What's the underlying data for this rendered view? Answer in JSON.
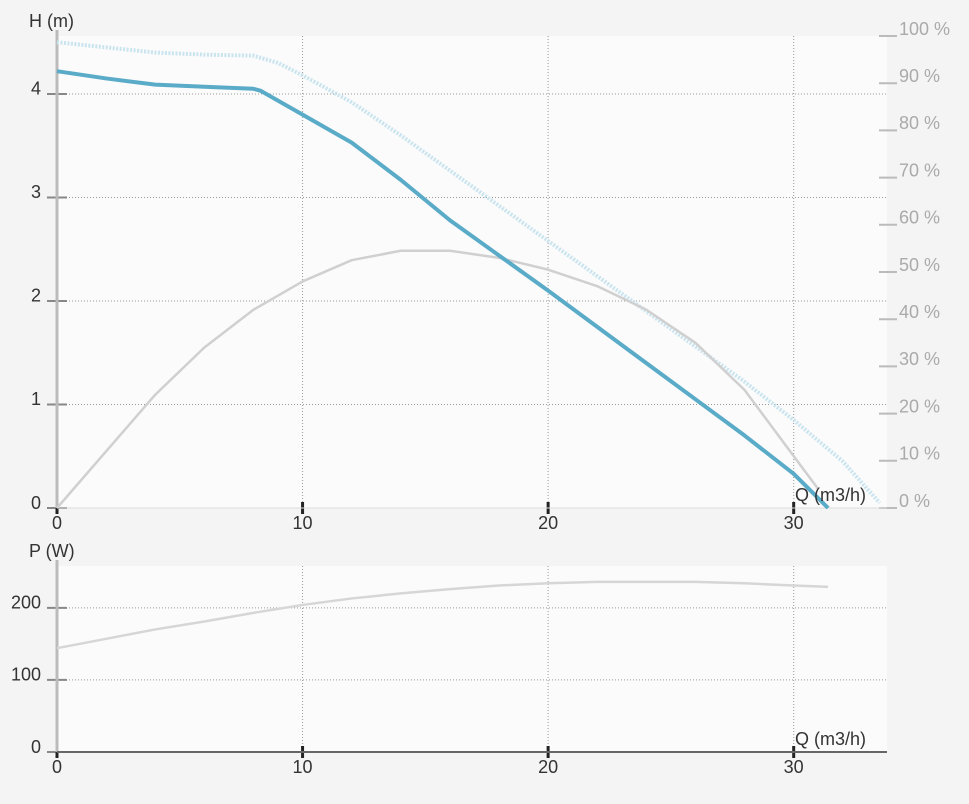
{
  "chart_data": [
    {
      "type": "line",
      "y_label": "H (m)",
      "x_label": "Q (m3/h)",
      "xlim": [
        0,
        33.8
      ],
      "xticks": [
        0,
        10,
        20,
        30
      ],
      "ylim": [
        0,
        4.56
      ],
      "yticks": [
        0,
        1,
        2,
        3,
        4
      ],
      "y2lim": [
        0,
        100
      ],
      "y2ticks": [
        {
          "value": 0,
          "label": "0 %"
        },
        {
          "value": 10,
          "label": "10 %"
        },
        {
          "value": 20,
          "label": "20 %"
        },
        {
          "value": 30,
          "label": "30 %"
        },
        {
          "value": 40,
          "label": "40 %"
        },
        {
          "value": 50,
          "label": "50 %"
        },
        {
          "value": 60,
          "label": "60 %"
        },
        {
          "value": 70,
          "label": "70 %"
        },
        {
          "value": 80,
          "label": "80 %"
        },
        {
          "value": 90,
          "label": "90 %"
        },
        {
          "value": 100,
          "label": "100 %"
        }
      ],
      "grid": true,
      "series": [
        {
          "color": "#c9e4ef",
          "style": "dotted",
          "x": [
            0,
            2,
            4,
            6,
            8,
            9,
            10,
            12,
            14,
            16,
            18,
            20,
            22,
            24,
            26,
            28,
            30,
            32,
            33.5
          ],
          "values": [
            4.5,
            4.45,
            4.4,
            4.38,
            4.37,
            4.3,
            4.18,
            3.92,
            3.6,
            3.26,
            2.92,
            2.58,
            2.24,
            1.9,
            1.56,
            1.22,
            0.85,
            0.45,
            0.05
          ]
        },
        {
          "color": "#d0d0d0",
          "axis": "y2",
          "x": [
            0,
            2,
            4,
            6,
            8,
            10,
            12,
            14,
            16,
            18,
            20,
            22,
            24,
            26,
            28,
            30,
            31
          ],
          "values": [
            0,
            12,
            24,
            34,
            42,
            48,
            52.5,
            54.5,
            54.5,
            53,
            50.5,
            47,
            42,
            35,
            25,
            11,
            4
          ]
        },
        {
          "color": "#5aabc8",
          "x": [
            0,
            2,
            4,
            6,
            8,
            8.3,
            10,
            12,
            14,
            16,
            18,
            20,
            22,
            24,
            26,
            28,
            30,
            31.4
          ],
          "values": [
            4.22,
            4.15,
            4.09,
            4.07,
            4.05,
            4.03,
            3.8,
            3.53,
            3.17,
            2.78,
            2.44,
            2.1,
            1.75,
            1.4,
            1.05,
            0.7,
            0.33,
            0
          ]
        }
      ]
    },
    {
      "type": "line",
      "y_label": "P (W)",
      "x_label": "Q (m3/h)",
      "xlim": [
        0,
        33.8
      ],
      "xticks": [
        0,
        10,
        20,
        30
      ],
      "ylim": [
        0,
        258
      ],
      "yticks": [
        0,
        100,
        200
      ],
      "grid": true,
      "series": [
        {
          "color": "#d6d6d6",
          "x": [
            0,
            2,
            4,
            6,
            8,
            10,
            12,
            14,
            16,
            18,
            20,
            22,
            24,
            26,
            28,
            30,
            31.4
          ],
          "values": [
            144,
            157,
            170,
            181,
            193,
            204,
            213,
            220,
            226,
            231,
            234,
            236,
            236,
            236,
            234,
            231,
            229
          ]
        }
      ]
    }
  ]
}
